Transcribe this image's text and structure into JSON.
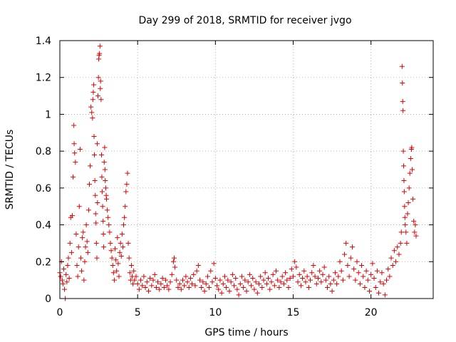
{
  "chart_data": {
    "type": "scatter",
    "title": "Day 299 of 2018, SRMTID for receiver jvgo",
    "xlabel": "GPS time / hours",
    "ylabel": "SRMTID / TECUs",
    "xlim": [
      0,
      24
    ],
    "ylim": [
      0,
      1.4
    ],
    "x_ticks": [
      0,
      5,
      10,
      15,
      20
    ],
    "x_tick_labels": [
      "0",
      "5",
      "10",
      "15",
      "20"
    ],
    "y_ticks": [
      0,
      0.2,
      0.4,
      0.6,
      0.8,
      1.0,
      1.2,
      1.4
    ],
    "y_tick_labels": [
      "0",
      "0.2",
      "0.4",
      "0.6",
      "0.8",
      "1",
      "1.2",
      "1.4"
    ],
    "grid": true,
    "marker": "+",
    "marker_color": "#e00000",
    "series": [
      {
        "name": "SRMTID",
        "points": [
          [
            0.0,
            0.14
          ],
          [
            0.05,
            0.12
          ],
          [
            0.1,
            0.2
          ],
          [
            0.15,
            0.1
          ],
          [
            0.2,
            0.08
          ],
          [
            0.25,
            0.16
          ],
          [
            0.3,
            0.05
          ],
          [
            0.35,
            0.0
          ],
          [
            0.4,
            0.13
          ],
          [
            0.45,
            0.09
          ],
          [
            0.5,
            0.18
          ],
          [
            0.55,
            0.22
          ],
          [
            0.6,
            0.11
          ],
          [
            0.65,
            0.3
          ],
          [
            0.7,
            0.44
          ],
          [
            0.75,
            0.25
          ],
          [
            0.8,
            0.45
          ],
          [
            0.85,
            0.66
          ],
          [
            0.9,
            0.94
          ],
          [
            0.92,
            0.84
          ],
          [
            0.95,
            0.79
          ],
          [
            1.0,
            0.74
          ],
          [
            1.05,
            0.35
          ],
          [
            1.1,
            0.18
          ],
          [
            1.15,
            0.12
          ],
          [
            1.2,
            0.28
          ],
          [
            1.25,
            0.5
          ],
          [
            1.3,
            0.81
          ],
          [
            1.35,
            0.22
          ],
          [
            1.4,
            0.15
          ],
          [
            1.45,
            0.33
          ],
          [
            1.5,
            0.36
          ],
          [
            1.55,
            0.1
          ],
          [
            1.6,
            0.2
          ],
          [
            1.65,
            0.28
          ],
          [
            1.7,
            0.4
          ],
          [
            1.75,
            0.31
          ],
          [
            1.8,
            0.25
          ],
          [
            1.85,
            0.48
          ],
          [
            1.9,
            0.62
          ],
          [
            1.95,
            0.72
          ],
          [
            2.0,
            1.04
          ],
          [
            2.05,
            1.01
          ],
          [
            2.1,
            0.98
          ],
          [
            2.12,
            1.08
          ],
          [
            2.15,
            1.12
          ],
          [
            2.18,
            1.16
          ],
          [
            2.2,
            0.88
          ],
          [
            2.22,
            0.78
          ],
          [
            2.25,
            0.64
          ],
          [
            2.28,
            0.56
          ],
          [
            2.3,
            0.46
          ],
          [
            2.32,
            0.41
          ],
          [
            2.35,
            0.3
          ],
          [
            2.38,
            0.22
          ],
          [
            2.4,
            0.84
          ],
          [
            2.42,
            0.52
          ],
          [
            2.45,
            1.1
          ],
          [
            2.48,
            1.2
          ],
          [
            2.5,
            1.3
          ],
          [
            2.52,
            1.32
          ],
          [
            2.55,
            1.33
          ],
          [
            2.58,
            1.37
          ],
          [
            2.6,
            1.14
          ],
          [
            2.62,
            1.18
          ],
          [
            2.65,
            1.08
          ],
          [
            2.68,
            0.78
          ],
          [
            2.7,
            0.66
          ],
          [
            2.72,
            0.58
          ],
          [
            2.75,
            0.5
          ],
          [
            2.78,
            0.42
          ],
          [
            2.8,
            0.35
          ],
          [
            2.82,
            0.28
          ],
          [
            2.85,
            0.74
          ],
          [
            2.88,
            0.82
          ],
          [
            2.9,
            0.7
          ],
          [
            2.92,
            0.64
          ],
          [
            2.95,
            0.6
          ],
          [
            2.98,
            0.56
          ],
          [
            3.0,
            0.54
          ],
          [
            3.05,
            0.48
          ],
          [
            3.1,
            0.44
          ],
          [
            3.15,
            0.4
          ],
          [
            3.2,
            0.36
          ],
          [
            3.25,
            0.3
          ],
          [
            3.3,
            0.26
          ],
          [
            3.35,
            0.22
          ],
          [
            3.4,
            0.18
          ],
          [
            3.45,
            0.14
          ],
          [
            3.5,
            0.1
          ],
          [
            3.55,
            0.27
          ],
          [
            3.6,
            0.21
          ],
          [
            3.65,
            0.15
          ],
          [
            3.7,
            0.33
          ],
          [
            3.75,
            0.19
          ],
          [
            3.8,
            0.12
          ],
          [
            3.85,
            0.25
          ],
          [
            3.9,
            0.3
          ],
          [
            3.95,
            0.23
          ],
          [
            4.0,
            0.35
          ],
          [
            4.05,
            0.28
          ],
          [
            4.1,
            0.4
          ],
          [
            4.15,
            0.44
          ],
          [
            4.2,
            0.5
          ],
          [
            4.25,
            0.58
          ],
          [
            4.3,
            0.62
          ],
          [
            4.35,
            0.68
          ],
          [
            4.4,
            0.3
          ],
          [
            4.45,
            0.22
          ],
          [
            4.5,
            0.14
          ],
          [
            4.55,
            0.1
          ],
          [
            4.6,
            0.18
          ],
          [
            4.65,
            0.12
          ],
          [
            4.7,
            0.08
          ],
          [
            4.75,
            0.15
          ],
          [
            4.8,
            0.1
          ],
          [
            4.9,
            0.12
          ],
          [
            5.0,
            0.08
          ],
          [
            5.1,
            0.05
          ],
          [
            5.2,
            0.1
          ],
          [
            5.3,
            0.07
          ],
          [
            5.4,
            0.12
          ],
          [
            5.5,
            0.06
          ],
          [
            5.6,
            0.09
          ],
          [
            5.7,
            0.04
          ],
          [
            5.8,
            0.11
          ],
          [
            5.9,
            0.07
          ],
          [
            6.0,
            0.1
          ],
          [
            6.1,
            0.13
          ],
          [
            6.2,
            0.06
          ],
          [
            6.3,
            0.09
          ],
          [
            6.4,
            0.05
          ],
          [
            6.5,
            0.08
          ],
          [
            6.6,
            0.11
          ],
          [
            6.7,
            0.06
          ],
          [
            6.8,
            0.1
          ],
          [
            6.9,
            0.07
          ],
          [
            7.0,
            0.05
          ],
          [
            7.1,
            0.09
          ],
          [
            7.2,
            0.13
          ],
          [
            7.3,
            0.2
          ],
          [
            7.35,
            0.22
          ],
          [
            7.4,
            0.17
          ],
          [
            7.5,
            0.1
          ],
          [
            7.6,
            0.06
          ],
          [
            7.7,
            0.08
          ],
          [
            7.8,
            0.05
          ],
          [
            7.9,
            0.1
          ],
          [
            8.0,
            0.07
          ],
          [
            8.1,
            0.12
          ],
          [
            8.2,
            0.09
          ],
          [
            8.3,
            0.06
          ],
          [
            8.4,
            0.11
          ],
          [
            8.5,
            0.08
          ],
          [
            8.6,
            0.13
          ],
          [
            8.7,
            0.07
          ],
          [
            8.8,
            0.15
          ],
          [
            8.9,
            0.18
          ],
          [
            9.0,
            0.1
          ],
          [
            9.1,
            0.06
          ],
          [
            9.2,
            0.09
          ],
          [
            9.3,
            0.04
          ],
          [
            9.4,
            0.08
          ],
          [
            9.5,
            0.12
          ],
          [
            9.6,
            0.06
          ],
          [
            9.7,
            0.15
          ],
          [
            9.8,
            0.09
          ],
          [
            9.9,
            0.19
          ],
          [
            10.0,
            0.11
          ],
          [
            10.1,
            0.07
          ],
          [
            10.2,
            0.05
          ],
          [
            10.3,
            0.1
          ],
          [
            10.4,
            0.03
          ],
          [
            10.5,
            0.08
          ],
          [
            10.6,
            0.12
          ],
          [
            10.7,
            0.06
          ],
          [
            10.8,
            0.1
          ],
          [
            10.9,
            0.04
          ],
          [
            11.0,
            0.09
          ],
          [
            11.1,
            0.13
          ],
          [
            11.2,
            0.07
          ],
          [
            11.3,
            0.11
          ],
          [
            11.4,
            0.05
          ],
          [
            11.5,
            0.02
          ],
          [
            11.6,
            0.08
          ],
          [
            11.7,
            0.12
          ],
          [
            11.8,
            0.06
          ],
          [
            11.9,
            0.1
          ],
          [
            12.0,
            0.04
          ],
          [
            12.1,
            0.09
          ],
          [
            12.2,
            0.13
          ],
          [
            12.3,
            0.07
          ],
          [
            12.4,
            0.11
          ],
          [
            12.5,
            0.05
          ],
          [
            12.6,
            0.09
          ],
          [
            12.7,
            0.03
          ],
          [
            12.8,
            0.08
          ],
          [
            12.9,
            0.12
          ],
          [
            13.0,
            0.06
          ],
          [
            13.1,
            0.1
          ],
          [
            13.2,
            0.14
          ],
          [
            13.3,
            0.08
          ],
          [
            13.4,
            0.11
          ],
          [
            13.5,
            0.05
          ],
          [
            13.6,
            0.09
          ],
          [
            13.7,
            0.13
          ],
          [
            13.8,
            0.07
          ],
          [
            13.9,
            0.15
          ],
          [
            14.0,
            0.1
          ],
          [
            14.1,
            0.06
          ],
          [
            14.2,
            0.09
          ],
          [
            14.3,
            0.12
          ],
          [
            14.4,
            0.08
          ],
          [
            14.5,
            0.14
          ],
          [
            14.6,
            0.1
          ],
          [
            14.7,
            0.06
          ],
          [
            14.8,
            0.11
          ],
          [
            14.9,
            0.16
          ],
          [
            15.0,
            0.12
          ],
          [
            15.1,
            0.2
          ],
          [
            15.2,
            0.17
          ],
          [
            15.3,
            0.09
          ],
          [
            15.4,
            0.13
          ],
          [
            15.5,
            0.07
          ],
          [
            15.6,
            0.11
          ],
          [
            15.7,
            0.15
          ],
          [
            15.8,
            0.09
          ],
          [
            15.9,
            0.12
          ],
          [
            16.0,
            0.06
          ],
          [
            16.1,
            0.1
          ],
          [
            16.2,
            0.14
          ],
          [
            16.3,
            0.18
          ],
          [
            16.4,
            0.12
          ],
          [
            16.5,
            0.08
          ],
          [
            16.6,
            0.11
          ],
          [
            16.7,
            0.15
          ],
          [
            16.8,
            0.09
          ],
          [
            16.9,
            0.13
          ],
          [
            17.0,
            0.17
          ],
          [
            17.1,
            0.1
          ],
          [
            17.2,
            0.06
          ],
          [
            17.3,
            0.12
          ],
          [
            17.4,
            0.08
          ],
          [
            17.5,
            0.04
          ],
          [
            17.6,
            0.1
          ],
          [
            17.7,
            0.14
          ],
          [
            17.8,
            0.08
          ],
          [
            17.9,
            0.12
          ],
          [
            18.0,
            0.2
          ],
          [
            18.1,
            0.15
          ],
          [
            18.2,
            0.1
          ],
          [
            18.3,
            0.24
          ],
          [
            18.4,
            0.3
          ],
          [
            18.5,
            0.18
          ],
          [
            18.6,
            0.12
          ],
          [
            18.7,
            0.22
          ],
          [
            18.8,
            0.28
          ],
          [
            18.9,
            0.16
          ],
          [
            19.0,
            0.1
          ],
          [
            19.1,
            0.2
          ],
          [
            19.2,
            0.14
          ],
          [
            19.3,
            0.08
          ],
          [
            19.4,
            0.18
          ],
          [
            19.5,
            0.12
          ],
          [
            19.6,
            0.06
          ],
          [
            19.7,
            0.15
          ],
          [
            19.8,
            0.1
          ],
          [
            19.9,
            0.04
          ],
          [
            20.0,
            0.13
          ],
          [
            20.1,
            0.19
          ],
          [
            20.2,
            0.11
          ],
          [
            20.3,
            0.06
          ],
          [
            20.4,
            0.15
          ],
          [
            20.5,
            0.03
          ],
          [
            20.6,
            0.09
          ],
          [
            20.7,
            0.14
          ],
          [
            20.8,
            0.08
          ],
          [
            20.9,
            0.02
          ],
          [
            21.0,
            0.1
          ],
          [
            21.1,
            0.16
          ],
          [
            21.2,
            0.12
          ],
          [
            21.3,
            0.22
          ],
          [
            21.4,
            0.18
          ],
          [
            21.5,
            0.26
          ],
          [
            21.6,
            0.2
          ],
          [
            21.7,
            0.28
          ],
          [
            21.8,
            0.24
          ],
          [
            21.9,
            0.3
          ],
          [
            21.95,
            0.36
          ],
          [
            22.0,
            1.26
          ],
          [
            22.02,
            1.17
          ],
          [
            22.04,
            1.07
          ],
          [
            22.06,
            1.02
          ],
          [
            22.08,
            0.8
          ],
          [
            22.1,
            0.72
          ],
          [
            22.12,
            0.64
          ],
          [
            22.14,
            0.58
          ],
          [
            22.16,
            0.5
          ],
          [
            22.18,
            0.44
          ],
          [
            22.2,
            0.4
          ],
          [
            22.25,
            0.36
          ],
          [
            22.3,
            0.3
          ],
          [
            22.35,
            0.46
          ],
          [
            22.4,
            0.52
          ],
          [
            22.45,
            0.6
          ],
          [
            22.5,
            0.68
          ],
          [
            22.55,
            0.76
          ],
          [
            22.6,
            0.81
          ],
          [
            22.62,
            0.82
          ],
          [
            22.65,
            0.7
          ],
          [
            22.7,
            0.54
          ],
          [
            22.75,
            0.42
          ],
          [
            22.8,
            0.36
          ],
          [
            22.85,
            0.4
          ],
          [
            22.9,
            0.34
          ]
        ]
      }
    ]
  }
}
